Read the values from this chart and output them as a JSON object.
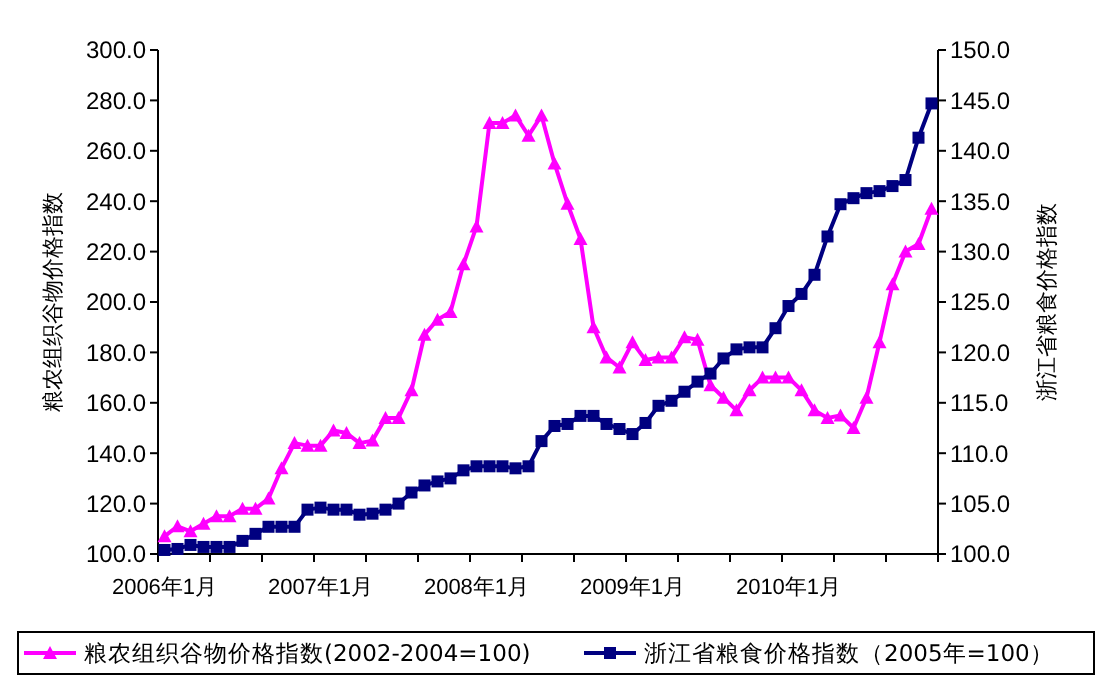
{
  "chart_data": {
    "type": "line",
    "ylabel": "粮农组织谷物价格指数",
    "y2label": "浙江省粮食价格指数",
    "categories": [
      "2006年1月",
      null,
      null,
      null,
      null,
      null,
      null,
      null,
      null,
      null,
      null,
      null,
      "2007年1月",
      null,
      null,
      null,
      null,
      null,
      null,
      null,
      null,
      null,
      null,
      null,
      "2008年1月",
      null,
      null,
      null,
      null,
      null,
      null,
      null,
      null,
      null,
      null,
      null,
      "2009年1月",
      null,
      null,
      null,
      null,
      null,
      null,
      null,
      null,
      null,
      null,
      null,
      "2010年1月",
      null,
      null,
      null,
      null,
      null,
      null,
      null,
      null,
      null,
      null,
      null
    ],
    "ylim": [
      100,
      300
    ],
    "yticks": [
      {
        "value": 100,
        "label": "100.0"
      },
      {
        "value": 120,
        "label": "120.0"
      },
      {
        "value": 140,
        "label": "140.0"
      },
      {
        "value": 160,
        "label": "160.0"
      },
      {
        "value": 180,
        "label": "180.0"
      },
      {
        "value": 200,
        "label": "200.0"
      },
      {
        "value": 220,
        "label": "220.0"
      },
      {
        "value": 240,
        "label": "240.0"
      },
      {
        "value": 260,
        "label": "260.0"
      },
      {
        "value": 280,
        "label": "280.0"
      },
      {
        "value": 300,
        "label": "300.0"
      }
    ],
    "y2lim": [
      100,
      150
    ],
    "y2ticks": [
      {
        "value": 100,
        "label": "100.0"
      },
      {
        "value": 105,
        "label": "105.0"
      },
      {
        "value": 110,
        "label": "110.0"
      },
      {
        "value": 115,
        "label": "115.0"
      },
      {
        "value": 120,
        "label": "120.0"
      },
      {
        "value": 125,
        "label": "125.0"
      },
      {
        "value": 130,
        "label": "130.0"
      },
      {
        "value": 135,
        "label": "135.0"
      },
      {
        "value": 140,
        "label": "140.0"
      },
      {
        "value": 145,
        "label": "145.0"
      },
      {
        "value": 150,
        "label": "150.0"
      }
    ],
    "grid": false,
    "legend": "bottom",
    "line_style": "solid",
    "series": [
      {
        "name": "粮农组织谷物价格指数(2002-2004=100)",
        "color": "#ff00ff",
        "marker": "triangle",
        "values": [
          107,
          111,
          109,
          112,
          115,
          115,
          118,
          118,
          122,
          134,
          144,
          143,
          143,
          149,
          148,
          144,
          145,
          154,
          154,
          165,
          187,
          193,
          196,
          215,
          230,
          271,
          271,
          274,
          266,
          274,
          255,
          239,
          225,
          190,
          178,
          174,
          184,
          177,
          178,
          178,
          186,
          185,
          167,
          162,
          157,
          165,
          170,
          170,
          170,
          165,
          157,
          154,
          155,
          150,
          162,
          184,
          207,
          220,
          223,
          237
        ]
      },
      {
        "name": "浙江省粮食价格指数（2005年=100）",
        "color": "#000080",
        "marker": "square",
        "axis": "y2",
        "values": [
          100.4,
          100.5,
          100.9,
          100.7,
          100.7,
          100.7,
          101.3,
          102.0,
          102.7,
          102.7,
          102.7,
          104.4,
          104.6,
          104.4,
          104.4,
          103.9,
          104.0,
          104.4,
          105.0,
          106.1,
          106.8,
          107.2,
          107.5,
          108.3,
          108.7,
          108.7,
          108.7,
          108.5,
          108.7,
          111.2,
          112.7,
          112.9,
          113.7,
          113.7,
          112.9,
          112.4,
          111.9,
          113.0,
          114.7,
          115.2,
          116.1,
          117.1,
          117.9,
          119.4,
          120.3,
          120.5,
          120.5,
          122.4,
          124.6,
          125.8,
          127.7,
          131.5,
          134.7,
          135.3,
          135.8,
          136.0,
          136.5,
          137.1,
          141.3,
          144.7
        ]
      }
    ]
  }
}
